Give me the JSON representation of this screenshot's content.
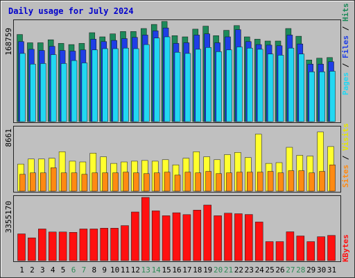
{
  "title": "Daily usage for July 2024",
  "colors": {
    "frame_bg": "#bdbdbd",
    "panel_bg": "#c0c0c0",
    "hits": "#1d8a5a",
    "files": "#1f3ee6",
    "pages": "#21d7f2",
    "visits": "#ffff2e",
    "sites": "#ff8a12",
    "kbytes": "#ff1010",
    "title_text": "#0000cc",
    "weekend_text": "#2e8b57"
  },
  "chart_data": {
    "type": "bar",
    "title": "Daily usage for July 2024",
    "categories": [
      "1",
      "2",
      "3",
      "4",
      "5",
      "6",
      "7",
      "8",
      "9",
      "10",
      "11",
      "12",
      "13",
      "14",
      "15",
      "16",
      "17",
      "18",
      "19",
      "20",
      "21",
      "22",
      "23",
      "24",
      "25",
      "26",
      "27",
      "28",
      "29",
      "30",
      "31"
    ],
    "weekend_days": [
      "6",
      "7",
      "13",
      "14",
      "20",
      "21",
      "27",
      "28"
    ],
    "panels": [
      {
        "ylabel_parts": [
          "Pages",
          "Files",
          "Hits"
        ],
        "ytick_label": "168759",
        "ylim": [
          0,
          168759
        ],
        "series": [
          {
            "name": "Hits",
            "values": [
              147000,
              133000,
              133000,
              138000,
              132000,
              130000,
              132000,
              150000,
              143000,
              148000,
              152000,
              152000,
              157000,
              164000,
              169000,
              145000,
              143000,
              156000,
              161000,
              145000,
              154000,
              162000,
              143000,
              139000,
              136000,
              136000,
              157000,
              144000,
              104000,
              107000,
              108000
            ]
          },
          {
            "name": "Files",
            "values": [
              135000,
              122000,
              120000,
              127000,
              120000,
              119000,
              121000,
              139000,
              135000,
              137000,
              140000,
              142000,
              146000,
              153000,
              158000,
              132000,
              133000,
              146000,
              148000,
              133000,
              143000,
              155000,
              135000,
              130000,
              129000,
              128000,
              146000,
              131000,
              97000,
              97000,
              101000
            ]
          },
          {
            "name": "Pages",
            "values": [
              115000,
              97000,
              98000,
              113000,
              98000,
              103000,
              99000,
              121000,
              123000,
              123000,
              124000,
              123000,
              130000,
              141000,
              143000,
              117000,
              115000,
              122000,
              125000,
              118000,
              121000,
              126000,
              124000,
              122000,
              114000,
              112000,
              124000,
              114000,
              84000,
              84000,
              85000
            ]
          }
        ]
      },
      {
        "ylabel_parts": [
          "Sites",
          "Visits"
        ],
        "ytick_label": "8661",
        "ylim": [
          0,
          8661
        ],
        "series": [
          {
            "name": "Visits",
            "values": [
              3700,
              4400,
              4400,
              4500,
              5400,
              4100,
              4000,
              5200,
              4700,
              3800,
              4000,
              4100,
              4200,
              4100,
              4300,
              3600,
              4500,
              5400,
              4700,
              4300,
              5000,
              5300,
              4600,
              7800,
              3800,
              3900,
              6000,
              4900,
              4800,
              8100,
              6100
            ]
          },
          {
            "name": "Sites",
            "values": [
              2300,
              2500,
              2500,
              3200,
              2500,
              2500,
              2300,
              2500,
              2500,
              2500,
              2600,
              2500,
              2400,
              2500,
              2600,
              2200,
              2600,
              2500,
              2700,
              2400,
              2500,
              2600,
              2600,
              2600,
              2700,
              2500,
              2800,
              2800,
              2500,
              2700,
              3600
            ]
          }
        ]
      },
      {
        "ylabel_parts": [
          "KBytes"
        ],
        "ytick_label": "3355170",
        "ylim": [
          0,
          3355170
        ],
        "series": [
          {
            "name": "KBytes",
            "values": [
              1420000,
              1210000,
              1680000,
              1520000,
              1520000,
              1500000,
              1680000,
              1680000,
              1720000,
              1720000,
              1860000,
              2580000,
              3355170,
              2640000,
              2380000,
              2540000,
              2440000,
              2680000,
              2950000,
              2380000,
              2520000,
              2490000,
              2450000,
              2050000,
              1010000,
              1010000,
              1530000,
              1310000,
              1010000,
              1270000,
              1340000
            ]
          }
        ]
      }
    ]
  }
}
